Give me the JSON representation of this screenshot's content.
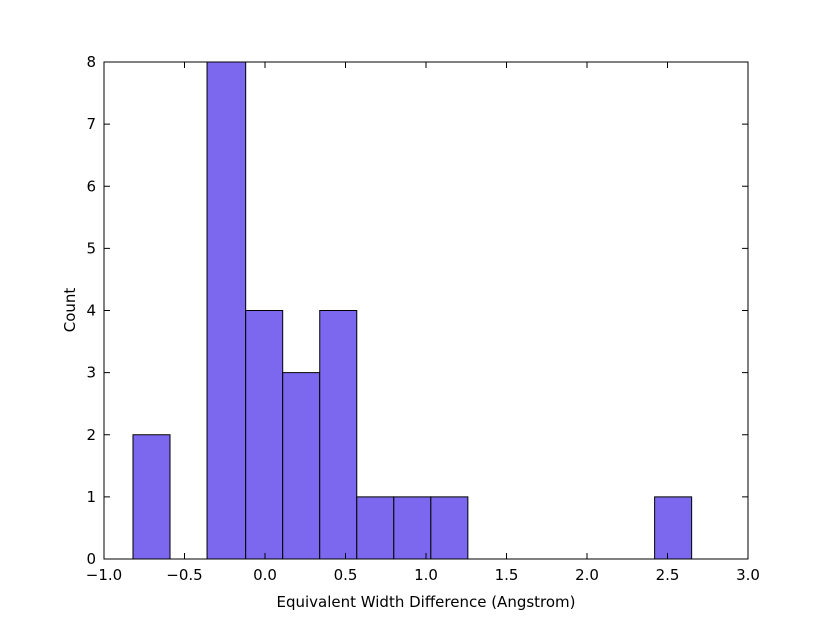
{
  "chart_data": {
    "type": "bar",
    "subtype": "histogram",
    "title": "",
    "xlabel": "Equivalent Width Difference (Angstrom)",
    "ylabel": "Count",
    "xlim": [
      -1.0,
      3.0
    ],
    "ylim": [
      0,
      8
    ],
    "grid": false,
    "bar_color": "#7b68ee",
    "edge_color": "#000000",
    "bins": [
      {
        "x0": -0.82,
        "x1": -0.59,
        "count": 2
      },
      {
        "x0": -0.59,
        "x1": -0.36,
        "count": 0
      },
      {
        "x0": -0.36,
        "x1": -0.12,
        "count": 8
      },
      {
        "x0": -0.12,
        "x1": 0.11,
        "count": 4
      },
      {
        "x0": 0.11,
        "x1": 0.34,
        "count": 3
      },
      {
        "x0": 0.34,
        "x1": 0.57,
        "count": 4
      },
      {
        "x0": 0.57,
        "x1": 0.8,
        "count": 1
      },
      {
        "x0": 0.8,
        "x1": 1.03,
        "count": 1
      },
      {
        "x0": 1.03,
        "x1": 1.26,
        "count": 1
      },
      {
        "x0": 1.26,
        "x1": 1.49,
        "count": 0
      },
      {
        "x0": 1.49,
        "x1": 1.72,
        "count": 0
      },
      {
        "x0": 1.72,
        "x1": 1.96,
        "count": 0
      },
      {
        "x0": 1.96,
        "x1": 2.19,
        "count": 0
      },
      {
        "x0": 2.19,
        "x1": 2.42,
        "count": 0
      },
      {
        "x0": 2.42,
        "x1": 2.65,
        "count": 1
      }
    ],
    "x_ticks": [
      -1.0,
      -0.5,
      0.0,
      0.5,
      1.0,
      1.5,
      2.0,
      2.5,
      3.0
    ],
    "x_tick_labels": [
      "−1.0",
      "−0.5",
      "0.0",
      "0.5",
      "1.0",
      "1.5",
      "2.0",
      "2.5",
      "3.0"
    ],
    "y_ticks": [
      0,
      1,
      2,
      3,
      4,
      5,
      6,
      7,
      8
    ],
    "y_tick_labels": [
      "0",
      "1",
      "2",
      "3",
      "4",
      "5",
      "6",
      "7",
      "8"
    ]
  }
}
